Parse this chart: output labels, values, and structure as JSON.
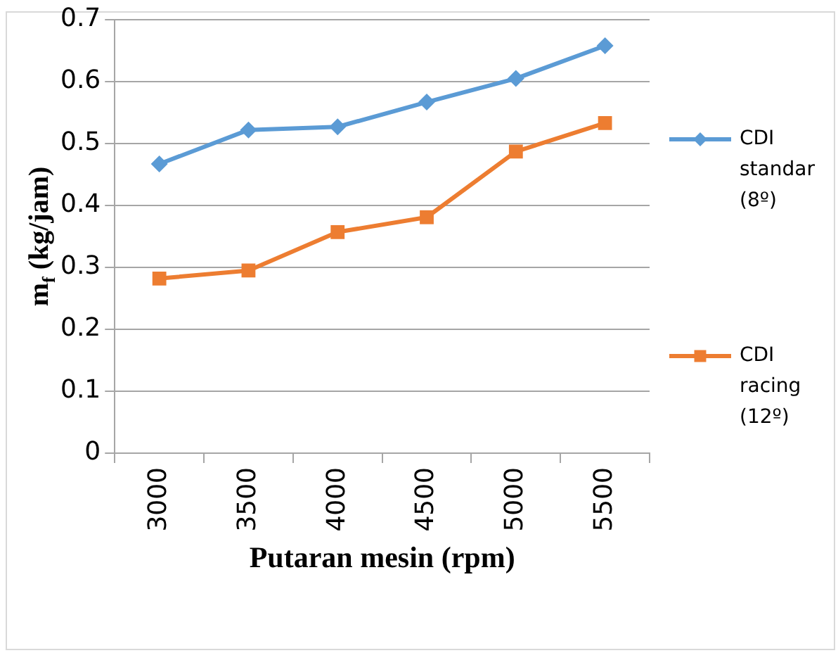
{
  "chart_data": {
    "type": "line",
    "xlabel": "Putaran mesin (rpm)",
    "ylabel": "m$_{f}$ (kg/jam)",
    "categories": [
      "3000",
      "3500",
      "4000",
      "4500",
      "5000",
      "5500"
    ],
    "series": [
      {
        "name": "CDI standar (8º)",
        "color": "#5b9bd5",
        "marker": "diamond",
        "values": [
          0.467,
          0.522,
          0.527,
          0.567,
          0.605,
          0.658
        ]
      },
      {
        "name": "CDI racing (12º)",
        "color": "#ed7d31",
        "marker": "square",
        "values": [
          0.282,
          0.295,
          0.357,
          0.381,
          0.487,
          0.533
        ]
      }
    ],
    "ylim": [
      0,
      0.7
    ],
    "yticks": [
      0,
      0.1,
      0.2,
      0.3,
      0.4,
      0.5,
      0.6,
      0.7
    ],
    "grid": "y",
    "legend": "right",
    "line_style": "solid"
  }
}
